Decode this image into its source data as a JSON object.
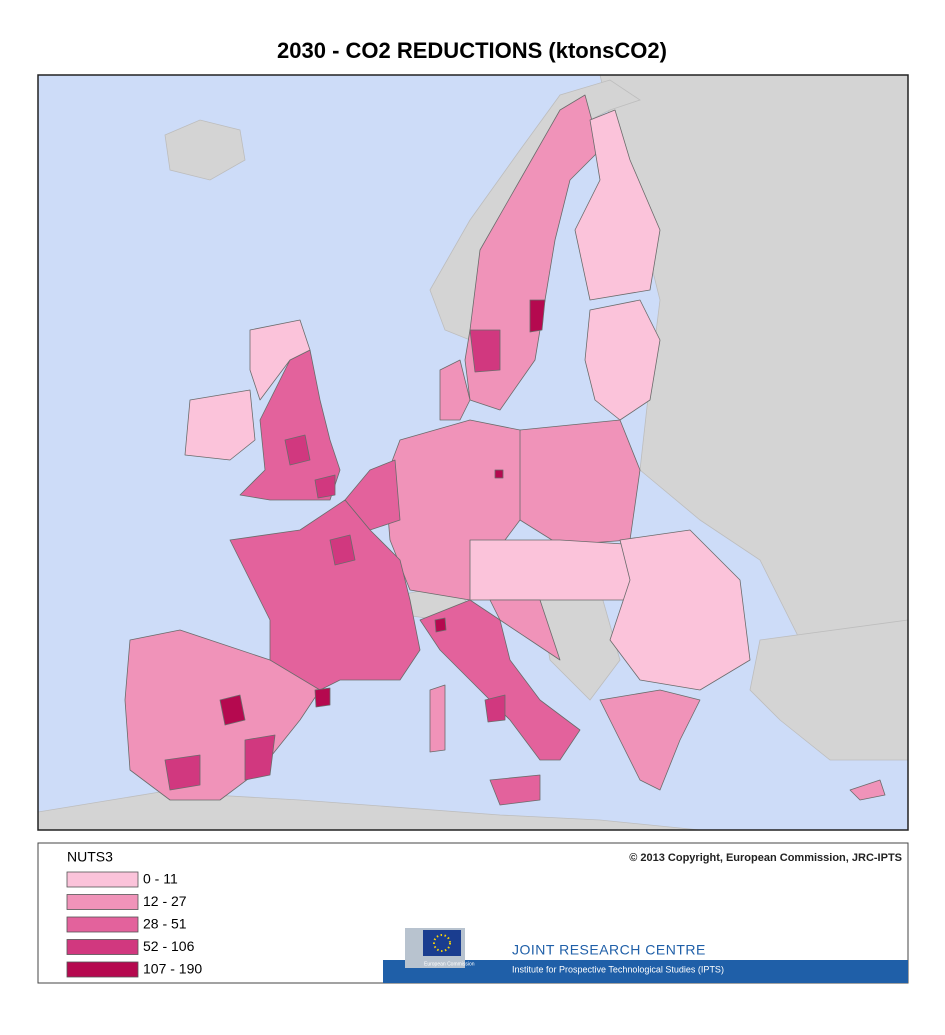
{
  "title": "2030 -  CO2 REDUCTIONS (ktonsCO2)",
  "legend": {
    "title": "NUTS3",
    "items": [
      {
        "label": "0 - 11",
        "color": "#fbc3da"
      },
      {
        "label": "12 - 27",
        "color": "#f093b9"
      },
      {
        "label": "28 - 51",
        "color": "#e3629c"
      },
      {
        "label": "52 - 106",
        "color": "#d1387f"
      },
      {
        "label": "107 - 190",
        "color": "#b5094f"
      }
    ]
  },
  "copyright": "© 2013 Copyright,  European Commission, JRC-IPTS",
  "logo": {
    "name": "JOINT RESEARCH CENTRE",
    "institute": "Institute for Prospective Technological Studies (IPTS)",
    "flag_caption": "European Commission"
  }
}
